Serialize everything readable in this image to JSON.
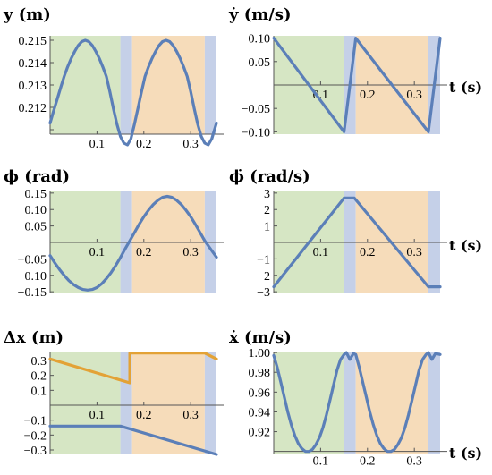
{
  "colors": {
    "phase1": "#d6e6c4",
    "phase2": "#c5d0e8",
    "phase3": "#f6dcba",
    "blue": "#5b7fb8",
    "orange": "#e3a236"
  },
  "phases": [
    [
      0,
      0.15,
      "phase1"
    ],
    [
      0.15,
      0.175,
      "phase2"
    ],
    [
      0.175,
      0.33,
      "phase3"
    ],
    [
      0.33,
      0.355,
      "phase2"
    ]
  ],
  "chart_data": [
    {
      "id": "y",
      "type": "line",
      "title": "y (m)",
      "xunit": "",
      "xlim": [
        0,
        0.355
      ],
      "ylim": [
        0.2108,
        0.2152
      ],
      "axis_y": 0.2108,
      "xticks": [
        0.1,
        0.2,
        0.3
      ],
      "yticks": [
        0.211,
        0.212,
        0.213,
        0.214,
        0.215
      ],
      "ytick_labels": [
        "",
        "0.212",
        "0.213",
        "0.214",
        "0.215"
      ],
      "series": [
        {
          "color": "blue",
          "x": [
            0,
            0.0075,
            0.015,
            0.0225,
            0.03,
            0.0375,
            0.045,
            0.0525,
            0.06,
            0.0675,
            0.075,
            0.0825,
            0.09,
            0.0975,
            0.105,
            0.1125,
            0.12,
            0.1275,
            0.135,
            0.1425,
            0.15,
            0.1575,
            0.165,
            0.1725,
            0.18,
            0.1875,
            0.195,
            0.2025,
            0.21,
            0.2175,
            0.225,
            0.2325,
            0.24,
            0.2475,
            0.255,
            0.2625,
            0.27,
            0.2775,
            0.285,
            0.2925,
            0.3,
            0.3075,
            0.315,
            0.3225,
            0.33,
            0.3375,
            0.345,
            0.355
          ],
          "y": [
            0.2113,
            0.21184,
            0.21236,
            0.21288,
            0.21338,
            0.21381,
            0.21419,
            0.2145,
            0.21477,
            0.21494,
            0.215,
            0.21494,
            0.21477,
            0.2145,
            0.21419,
            0.21381,
            0.21338,
            0.2127,
            0.21195,
            0.21125,
            0.2107,
            0.2104,
            0.21032,
            0.2106,
            0.21125,
            0.21195,
            0.2127,
            0.21338,
            0.21381,
            0.21419,
            0.2145,
            0.21477,
            0.21494,
            0.215,
            0.21494,
            0.21477,
            0.2145,
            0.21419,
            0.21381,
            0.21338,
            0.2127,
            0.21195,
            0.21125,
            0.2107,
            0.2104,
            0.21032,
            0.2106,
            0.2113
          ]
        }
      ]
    },
    {
      "id": "ydot",
      "type": "line",
      "title": "ẏ (m/s)",
      "xunit": "t (s)",
      "xlim": [
        0,
        0.355
      ],
      "ylim": [
        -0.105,
        0.105
      ],
      "axis_y": 0,
      "xticks": [
        0.1,
        0.2,
        0.3
      ],
      "yticks": [
        -0.1,
        -0.05,
        0.05,
        0.1
      ],
      "ytick_labels": [
        "−0.10",
        "−0.05",
        "0.05",
        "0.10"
      ],
      "series": [
        {
          "color": "blue",
          "x": [
            0,
            0.15,
            0.175,
            0.33,
            0.355
          ],
          "y": [
            0.1,
            -0.1,
            0.1,
            -0.1,
            0.1
          ]
        }
      ]
    },
    {
      "id": "phi",
      "type": "line",
      "title": "ϕ (rad)",
      "xunit": "",
      "xlim": [
        0,
        0.355
      ],
      "ylim": [
        -0.155,
        0.155
      ],
      "axis_y": 0,
      "xticks": [
        0.1,
        0.2,
        0.3
      ],
      "yticks": [
        -0.15,
        -0.1,
        -0.05,
        0.05,
        0.1,
        0.15
      ],
      "ytick_labels": [
        "−0.15",
        "−0.10",
        "−0.05",
        "0.05",
        "0.10",
        "0.15"
      ],
      "series": [
        {
          "color": "blue",
          "x": [
            0,
            0.01,
            0.02,
            0.03,
            0.04,
            0.05,
            0.06,
            0.07,
            0.08,
            0.09,
            0.1,
            0.11,
            0.12,
            0.13,
            0.14,
            0.15,
            0.16,
            0.17,
            0.18,
            0.19,
            0.2,
            0.21,
            0.22,
            0.23,
            0.24,
            0.25,
            0.26,
            0.27,
            0.28,
            0.29,
            0.3,
            0.31,
            0.32,
            0.33,
            0.34,
            0.355
          ],
          "y": [
            -0.04,
            -0.062,
            -0.082,
            -0.1,
            -0.116,
            -0.128,
            -0.137,
            -0.143,
            -0.145,
            -0.143,
            -0.137,
            -0.126,
            -0.11,
            -0.092,
            -0.07,
            -0.046,
            -0.02,
            0.005,
            0.03,
            0.055,
            0.078,
            0.098,
            0.115,
            0.128,
            0.137,
            0.14,
            0.137,
            0.128,
            0.115,
            0.098,
            0.078,
            0.055,
            0.03,
            0.005,
            -0.015,
            -0.045
          ]
        }
      ]
    },
    {
      "id": "phidot",
      "type": "line",
      "title": "ϕ̇ (rad/s)",
      "xunit": "t (s)",
      "xlim": [
        0,
        0.355
      ],
      "ylim": [
        -3.1,
        3.1
      ],
      "axis_y": 0,
      "xticks": [
        0.1,
        0.2,
        0.3
      ],
      "yticks": [
        -3,
        -2,
        -1,
        1,
        2,
        3
      ],
      "ytick_labels": [
        "−3",
        "−2",
        "−1",
        "1",
        "2",
        "3"
      ],
      "series": [
        {
          "color": "blue",
          "x": [
            0,
            0.15,
            0.172,
            0.33,
            0.355
          ],
          "y": [
            -2.7,
            2.7,
            2.7,
            -2.7,
            -2.7
          ]
        }
      ]
    },
    {
      "id": "dx",
      "type": "line",
      "title": "Δx (m)",
      "xunit": "",
      "xlim": [
        0,
        0.355
      ],
      "ylim": [
        -0.33,
        0.36
      ],
      "axis_y": 0,
      "xticks": [
        0.1,
        0.2,
        0.3
      ],
      "yticks": [
        -0.3,
        -0.2,
        -0.1,
        0.1,
        0.2,
        0.3
      ],
      "ytick_labels": [
        "−0.3",
        "−0.2",
        "−0.1",
        "0.1",
        "0.2",
        "0.3"
      ],
      "series": [
        {
          "color": "orange",
          "x": [
            0,
            0.17,
            0.17,
            0.33,
            0.355
          ],
          "y": [
            0.31,
            0.15,
            0.35,
            0.35,
            0.31
          ]
        },
        {
          "color": "blue",
          "x": [
            0,
            0.15,
            0.355
          ],
          "y": [
            -0.14,
            -0.14,
            -0.33
          ]
        }
      ]
    },
    {
      "id": "xdot",
      "type": "line",
      "title": "ẋ (m/s)",
      "xunit": "t (s)",
      "xlim": [
        0,
        0.355
      ],
      "ylim": [
        0.897,
        1.001
      ],
      "axis_y": 0.9,
      "xticks": [
        0.1,
        0.2,
        0.3
      ],
      "yticks": [
        0.92,
        0.94,
        0.96,
        0.98,
        1.0
      ],
      "ytick_labels": [
        "0.92",
        "0.94",
        "0.96",
        "0.98",
        "1.00"
      ],
      "series": [
        {
          "color": "blue",
          "x": [
            0,
            0.0075,
            0.015,
            0.0225,
            0.03,
            0.0375,
            0.045,
            0.0525,
            0.06,
            0.0675,
            0.075,
            0.0825,
            0.09,
            0.0975,
            0.105,
            0.1125,
            0.12,
            0.1275,
            0.135,
            0.1425,
            0.15,
            0.155,
            0.1625,
            0.17,
            0.175,
            0.1825,
            0.19,
            0.1975,
            0.205,
            0.2125,
            0.22,
            0.2275,
            0.235,
            0.2425,
            0.25,
            0.2575,
            0.265,
            0.2725,
            0.28,
            0.2875,
            0.295,
            0.3025,
            0.31,
            0.3175,
            0.325,
            0.33,
            0.3375,
            0.345,
            0.355
          ],
          "y": [
            0.997,
            0.985,
            0.97,
            0.955,
            0.94,
            0.927,
            0.916,
            0.908,
            0.903,
            0.9,
            0.9,
            0.902,
            0.907,
            0.914,
            0.924,
            0.937,
            0.952,
            0.967,
            0.982,
            0.993,
            0.998,
            1.0,
            0.993,
            0.999,
            0.998,
            0.985,
            0.97,
            0.955,
            0.94,
            0.927,
            0.916,
            0.908,
            0.903,
            0.9,
            0.9,
            0.902,
            0.907,
            0.914,
            0.924,
            0.937,
            0.952,
            0.967,
            0.982,
            0.993,
            0.998,
            1.0,
            0.993,
            0.999,
            0.998
          ]
        }
      ]
    }
  ]
}
